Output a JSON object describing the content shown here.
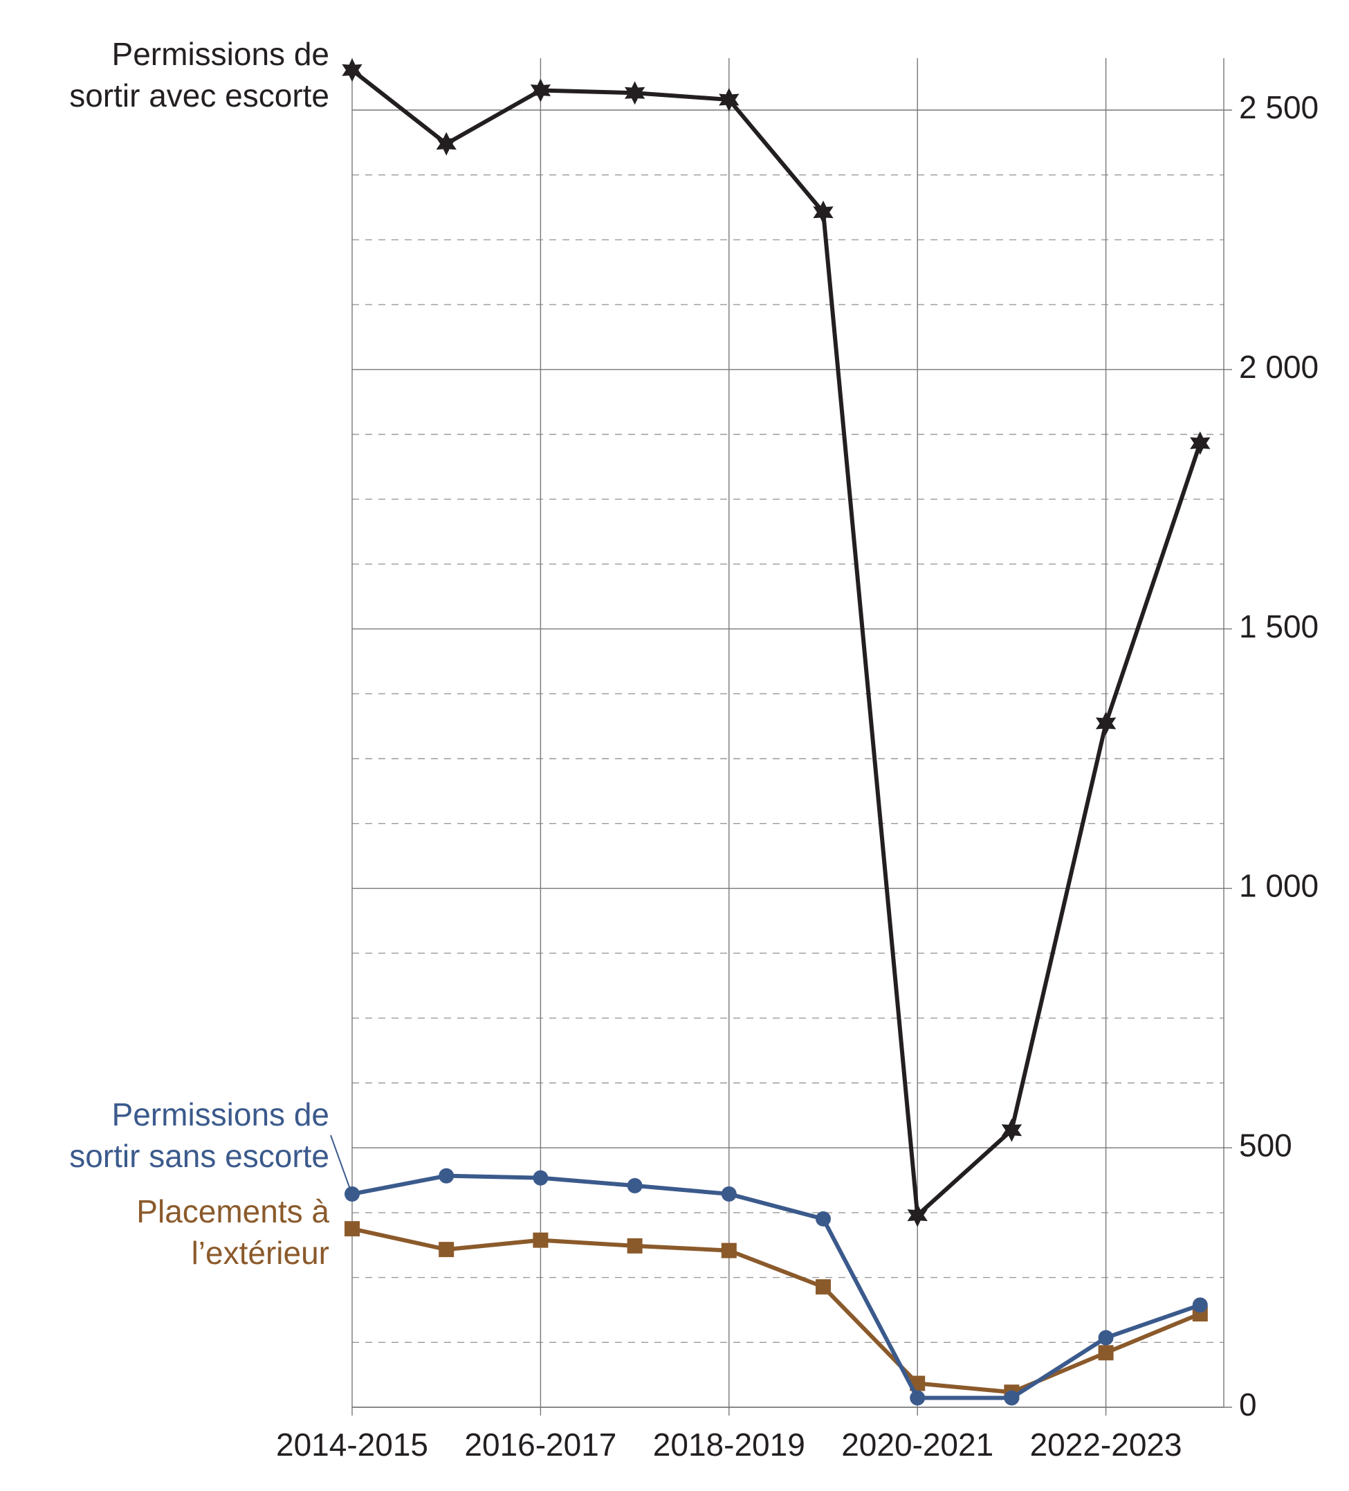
{
  "chart_data": {
    "type": "line",
    "categories": [
      "2014-2015",
      null,
      "2016-2017",
      null,
      "2018-2019",
      null,
      "2020-2021",
      null,
      "2022-2023",
      null
    ],
    "series": [
      {
        "name": "Permissions de\nsortir avec escorte",
        "color": "#231f20",
        "marker": "star",
        "values": [
          2577,
          2435,
          2538,
          2533,
          2520,
          2303,
          370,
          534,
          1318,
          1858
        ]
      },
      {
        "name": "Permissions de\nsortir sans escorte",
        "color": "#3b5a8c",
        "marker": "circle",
        "values": [
          411,
          446,
          442,
          427,
          411,
          363,
          18,
          18,
          134,
          197
        ]
      },
      {
        "name": "Placements à\nl’extérieur",
        "color": "#8b5a2b",
        "marker": "square",
        "values": [
          344,
          304,
          322,
          311,
          302,
          232,
          46,
          29,
          105,
          180
        ]
      }
    ],
    "ylim": [
      0,
      2600
    ],
    "yticks": [
      0,
      500,
      {
        "value": 1000,
        "label": "1 000"
      },
      {
        "value": 1500,
        "label": "1 500"
      },
      {
        "value": 2000,
        "label": "2 000"
      },
      {
        "value": 2500,
        "label": "2 500"
      }
    ],
    "minor_yticks": [
      125,
      250,
      375,
      625,
      750,
      875,
      1125,
      1250,
      1375,
      1625,
      1750,
      1875,
      2125,
      2250,
      2375
    ],
    "grid": true,
    "y_axis_side": "right"
  }
}
